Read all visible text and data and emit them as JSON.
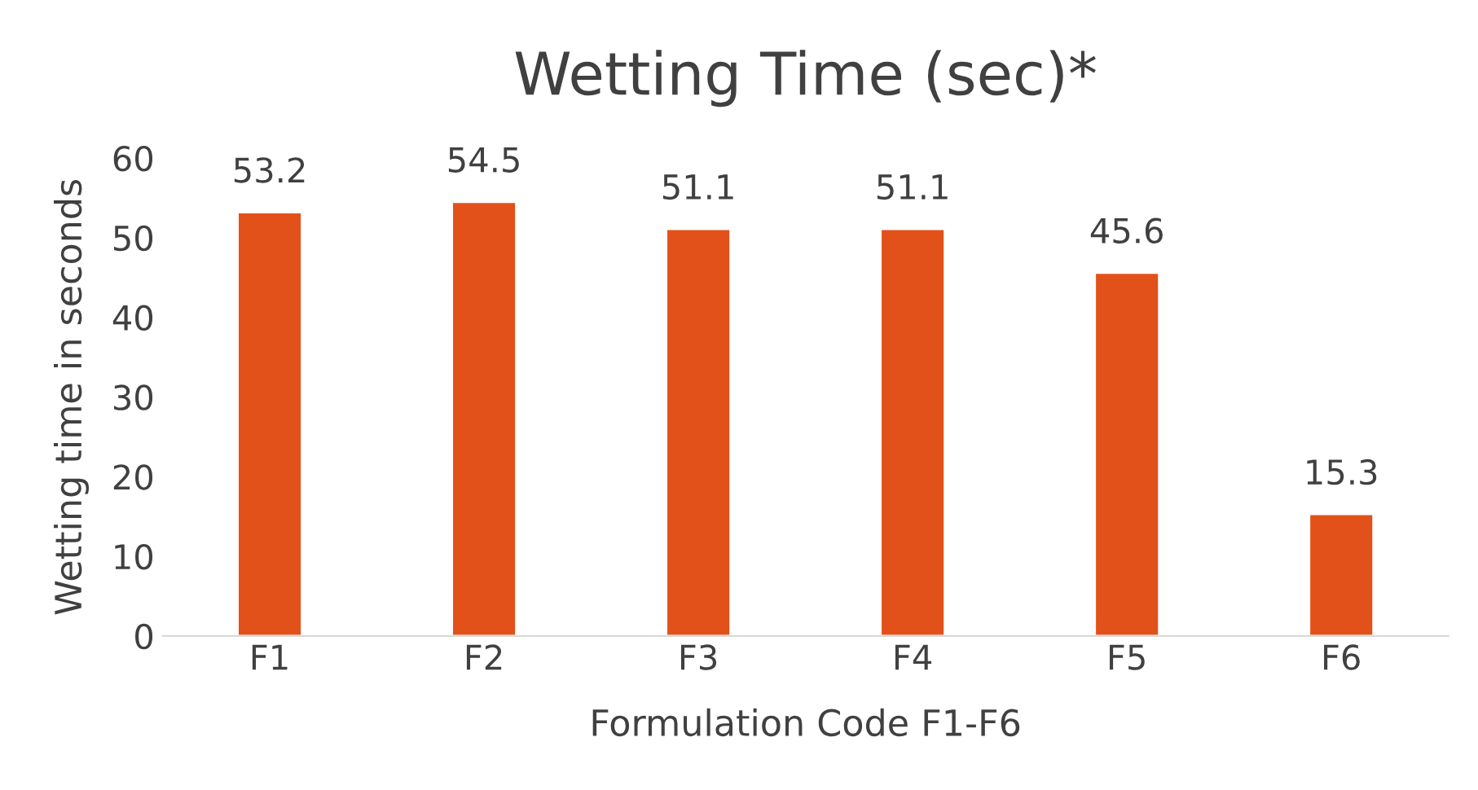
{
  "chart_data": {
    "type": "bar",
    "title": "Wetting Time (sec)*",
    "xlabel": "Formulation Code F1-F6",
    "ylabel": "Wetting time in seconds",
    "categories": [
      "F1",
      "F2",
      "F3",
      "F4",
      "F5",
      "F6"
    ],
    "values": [
      53.2,
      54.5,
      51.1,
      51.1,
      45.6,
      15.3
    ],
    "color": "#e2511a",
    "ylim": [
      0,
      60
    ],
    "yticks": [
      0,
      10,
      20,
      30,
      40,
      50,
      60
    ],
    "grid": false,
    "data_labels": true
  }
}
